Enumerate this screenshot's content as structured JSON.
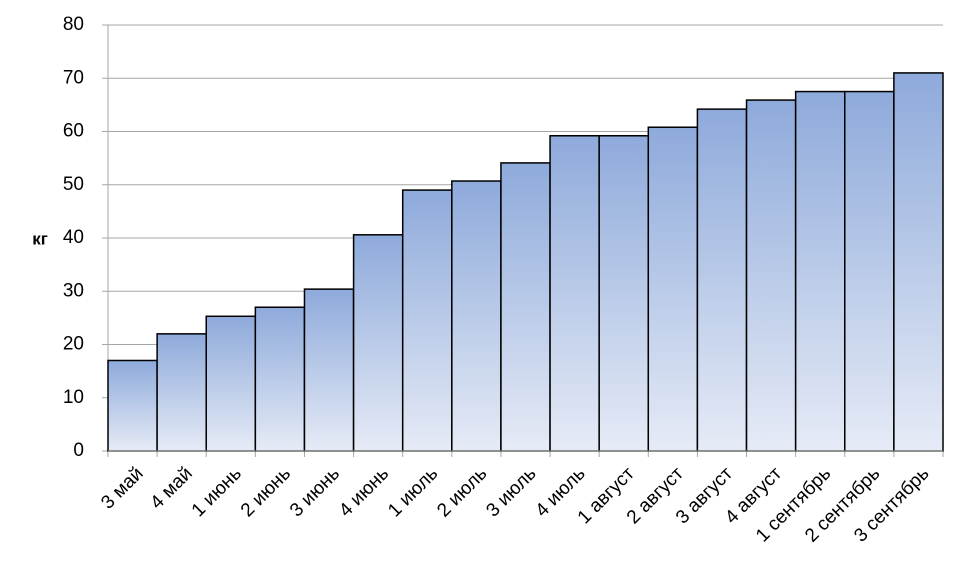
{
  "chart_data": {
    "type": "bar",
    "y_label": "кг",
    "categories": [
      "3 май",
      "4 май",
      "1 июнь",
      "2 июнь",
      "3 июнь",
      "4 июнь",
      "1 июль",
      "2 июль",
      "3 июль",
      "4 июль",
      "1 август",
      "2 август",
      "3 август",
      "4 август",
      "1 сентябрь",
      "2 сентябрь",
      "3 сентябрь"
    ],
    "values": [
      17,
      22,
      25.3,
      27,
      30.4,
      40.6,
      49,
      50.7,
      54.1,
      59.2,
      59.2,
      60.8,
      64.2,
      65.9,
      67.5,
      67.5,
      71
    ],
    "color": "#8eaadb",
    "ylim": [
      0,
      80
    ],
    "yticks": [
      0,
      10,
      20,
      30,
      40,
      50,
      60,
      70,
      80
    ],
    "grid": true
  }
}
